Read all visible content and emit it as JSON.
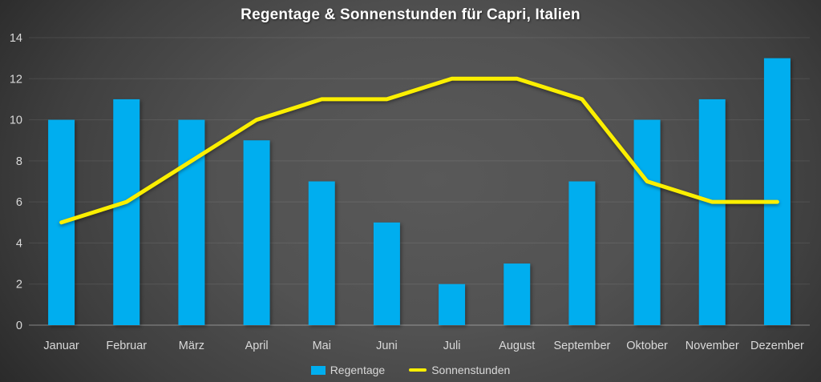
{
  "title": "Regentage & Sonnenstunden für Capri, Italien",
  "chart_data": {
    "type": "combo",
    "categories": [
      "Januar",
      "Februar",
      "März",
      "April",
      "Mai",
      "Juni",
      "Juli",
      "August",
      "September",
      "Oktober",
      "November",
      "Dezember"
    ],
    "series": [
      {
        "name": "Regentage",
        "type": "bar",
        "color": "#00AEEF",
        "values": [
          10,
          11,
          10,
          9,
          7,
          5,
          2,
          3,
          7,
          10,
          11,
          13
        ]
      },
      {
        "name": "Sonnenstunden",
        "type": "line",
        "color": "#FBEF00",
        "values": [
          5,
          6,
          8,
          10,
          11,
          11,
          12,
          12,
          11,
          7,
          6,
          6
        ]
      }
    ],
    "title": "Regentage & Sonnenstunden für Capri, Italien",
    "xlabel": "",
    "ylabel": "",
    "ylim": [
      0,
      14
    ],
    "yticks": [
      0,
      2,
      4,
      6,
      8,
      10,
      12,
      14
    ],
    "grid": true,
    "legend_position": "bottom"
  },
  "colors": {
    "background_center": "#595959",
    "background_edge": "#262626",
    "bar": "#00AEEF",
    "line": "#FBEF00",
    "title_text": "#FFFFFF",
    "axis_text": "#D9D9D9",
    "gridline": "rgba(255,255,255,0.09)",
    "axis_line": "rgba(255,255,255,0.32)"
  }
}
